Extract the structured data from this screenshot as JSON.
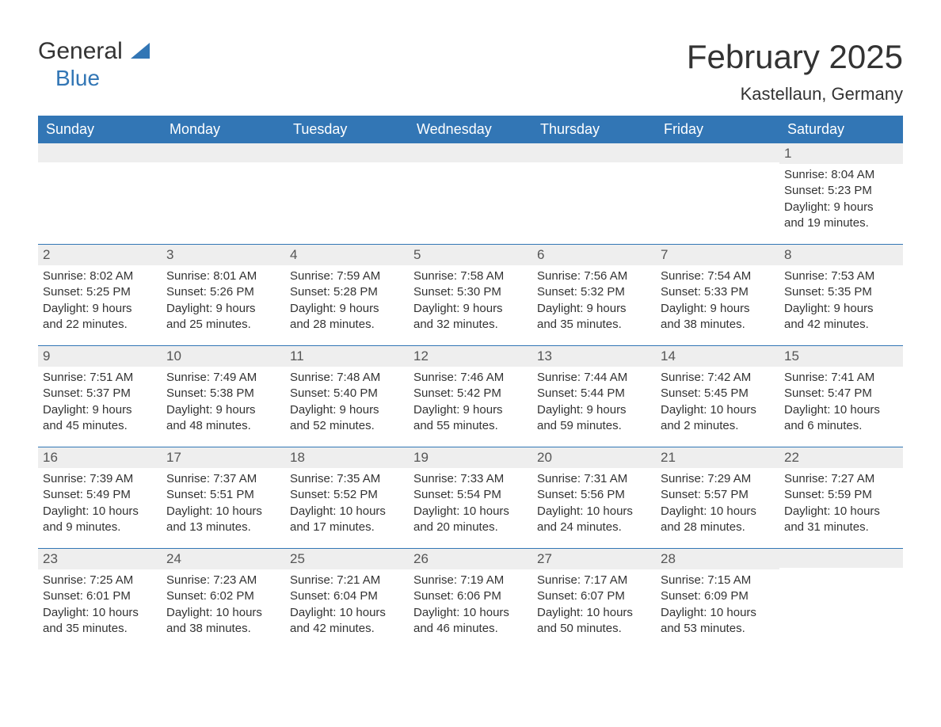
{
  "logo": {
    "word1": "General",
    "word2": "Blue"
  },
  "title": "February 2025",
  "location": "Kastellaun, Germany",
  "colors": {
    "accent": "#3276b5",
    "stripe": "#eeeeee",
    "text": "#333333",
    "bg": "#ffffff"
  },
  "weekdays": [
    "Sunday",
    "Monday",
    "Tuesday",
    "Wednesday",
    "Thursday",
    "Friday",
    "Saturday"
  ],
  "weeks": [
    [
      {
        "n": "",
        "sr": "",
        "ss": "",
        "dl1": "",
        "dl2": ""
      },
      {
        "n": "",
        "sr": "",
        "ss": "",
        "dl1": "",
        "dl2": ""
      },
      {
        "n": "",
        "sr": "",
        "ss": "",
        "dl1": "",
        "dl2": ""
      },
      {
        "n": "",
        "sr": "",
        "ss": "",
        "dl1": "",
        "dl2": ""
      },
      {
        "n": "",
        "sr": "",
        "ss": "",
        "dl1": "",
        "dl2": ""
      },
      {
        "n": "",
        "sr": "",
        "ss": "",
        "dl1": "",
        "dl2": ""
      },
      {
        "n": "1",
        "sr": "Sunrise: 8:04 AM",
        "ss": "Sunset: 5:23 PM",
        "dl1": "Daylight: 9 hours",
        "dl2": "and 19 minutes."
      }
    ],
    [
      {
        "n": "2",
        "sr": "Sunrise: 8:02 AM",
        "ss": "Sunset: 5:25 PM",
        "dl1": "Daylight: 9 hours",
        "dl2": "and 22 minutes."
      },
      {
        "n": "3",
        "sr": "Sunrise: 8:01 AM",
        "ss": "Sunset: 5:26 PM",
        "dl1": "Daylight: 9 hours",
        "dl2": "and 25 minutes."
      },
      {
        "n": "4",
        "sr": "Sunrise: 7:59 AM",
        "ss": "Sunset: 5:28 PM",
        "dl1": "Daylight: 9 hours",
        "dl2": "and 28 minutes."
      },
      {
        "n": "5",
        "sr": "Sunrise: 7:58 AM",
        "ss": "Sunset: 5:30 PM",
        "dl1": "Daylight: 9 hours",
        "dl2": "and 32 minutes."
      },
      {
        "n": "6",
        "sr": "Sunrise: 7:56 AM",
        "ss": "Sunset: 5:32 PM",
        "dl1": "Daylight: 9 hours",
        "dl2": "and 35 minutes."
      },
      {
        "n": "7",
        "sr": "Sunrise: 7:54 AM",
        "ss": "Sunset: 5:33 PM",
        "dl1": "Daylight: 9 hours",
        "dl2": "and 38 minutes."
      },
      {
        "n": "8",
        "sr": "Sunrise: 7:53 AM",
        "ss": "Sunset: 5:35 PM",
        "dl1": "Daylight: 9 hours",
        "dl2": "and 42 minutes."
      }
    ],
    [
      {
        "n": "9",
        "sr": "Sunrise: 7:51 AM",
        "ss": "Sunset: 5:37 PM",
        "dl1": "Daylight: 9 hours",
        "dl2": "and 45 minutes."
      },
      {
        "n": "10",
        "sr": "Sunrise: 7:49 AM",
        "ss": "Sunset: 5:38 PM",
        "dl1": "Daylight: 9 hours",
        "dl2": "and 48 minutes."
      },
      {
        "n": "11",
        "sr": "Sunrise: 7:48 AM",
        "ss": "Sunset: 5:40 PM",
        "dl1": "Daylight: 9 hours",
        "dl2": "and 52 minutes."
      },
      {
        "n": "12",
        "sr": "Sunrise: 7:46 AM",
        "ss": "Sunset: 5:42 PM",
        "dl1": "Daylight: 9 hours",
        "dl2": "and 55 minutes."
      },
      {
        "n": "13",
        "sr": "Sunrise: 7:44 AM",
        "ss": "Sunset: 5:44 PM",
        "dl1": "Daylight: 9 hours",
        "dl2": "and 59 minutes."
      },
      {
        "n": "14",
        "sr": "Sunrise: 7:42 AM",
        "ss": "Sunset: 5:45 PM",
        "dl1": "Daylight: 10 hours",
        "dl2": "and 2 minutes."
      },
      {
        "n": "15",
        "sr": "Sunrise: 7:41 AM",
        "ss": "Sunset: 5:47 PM",
        "dl1": "Daylight: 10 hours",
        "dl2": "and 6 minutes."
      }
    ],
    [
      {
        "n": "16",
        "sr": "Sunrise: 7:39 AM",
        "ss": "Sunset: 5:49 PM",
        "dl1": "Daylight: 10 hours",
        "dl2": "and 9 minutes."
      },
      {
        "n": "17",
        "sr": "Sunrise: 7:37 AM",
        "ss": "Sunset: 5:51 PM",
        "dl1": "Daylight: 10 hours",
        "dl2": "and 13 minutes."
      },
      {
        "n": "18",
        "sr": "Sunrise: 7:35 AM",
        "ss": "Sunset: 5:52 PM",
        "dl1": "Daylight: 10 hours",
        "dl2": "and 17 minutes."
      },
      {
        "n": "19",
        "sr": "Sunrise: 7:33 AM",
        "ss": "Sunset: 5:54 PM",
        "dl1": "Daylight: 10 hours",
        "dl2": "and 20 minutes."
      },
      {
        "n": "20",
        "sr": "Sunrise: 7:31 AM",
        "ss": "Sunset: 5:56 PM",
        "dl1": "Daylight: 10 hours",
        "dl2": "and 24 minutes."
      },
      {
        "n": "21",
        "sr": "Sunrise: 7:29 AM",
        "ss": "Sunset: 5:57 PM",
        "dl1": "Daylight: 10 hours",
        "dl2": "and 28 minutes."
      },
      {
        "n": "22",
        "sr": "Sunrise: 7:27 AM",
        "ss": "Sunset: 5:59 PM",
        "dl1": "Daylight: 10 hours",
        "dl2": "and 31 minutes."
      }
    ],
    [
      {
        "n": "23",
        "sr": "Sunrise: 7:25 AM",
        "ss": "Sunset: 6:01 PM",
        "dl1": "Daylight: 10 hours",
        "dl2": "and 35 minutes."
      },
      {
        "n": "24",
        "sr": "Sunrise: 7:23 AM",
        "ss": "Sunset: 6:02 PM",
        "dl1": "Daylight: 10 hours",
        "dl2": "and 38 minutes."
      },
      {
        "n": "25",
        "sr": "Sunrise: 7:21 AM",
        "ss": "Sunset: 6:04 PM",
        "dl1": "Daylight: 10 hours",
        "dl2": "and 42 minutes."
      },
      {
        "n": "26",
        "sr": "Sunrise: 7:19 AM",
        "ss": "Sunset: 6:06 PM",
        "dl1": "Daylight: 10 hours",
        "dl2": "and 46 minutes."
      },
      {
        "n": "27",
        "sr": "Sunrise: 7:17 AM",
        "ss": "Sunset: 6:07 PM",
        "dl1": "Daylight: 10 hours",
        "dl2": "and 50 minutes."
      },
      {
        "n": "28",
        "sr": "Sunrise: 7:15 AM",
        "ss": "Sunset: 6:09 PM",
        "dl1": "Daylight: 10 hours",
        "dl2": "and 53 minutes."
      },
      {
        "n": "",
        "sr": "",
        "ss": "",
        "dl1": "",
        "dl2": ""
      }
    ]
  ]
}
